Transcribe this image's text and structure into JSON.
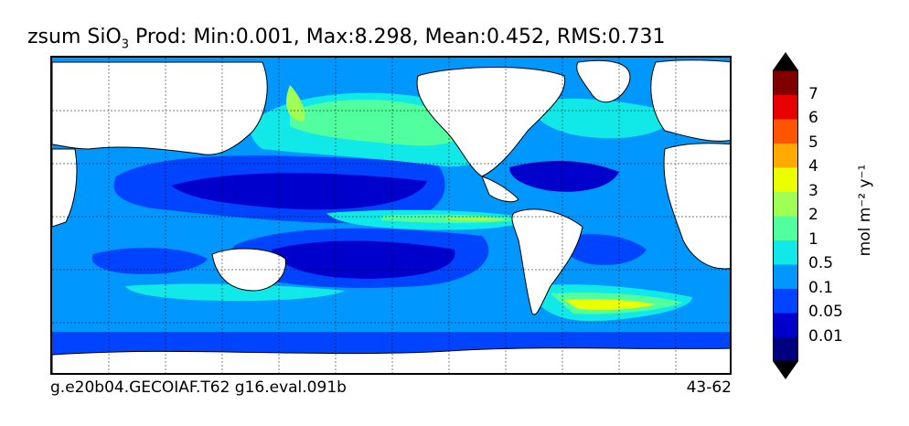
{
  "figure": {
    "title_prefix": "zsum SiO",
    "title_sub": "3",
    "title_suffix": " Prod: Min:0.001, Max:8.298, Mean:0.452, RMS:0.731",
    "footer_left": "g.e20b04.GECOIAF.T62 g16.eval.091b",
    "footer_right": "43-62"
  },
  "colorbar": {
    "ticks": [
      "7",
      "6",
      "5",
      "4",
      "3",
      "2",
      "1",
      "0.5",
      "0.1",
      "0.05",
      "0.01"
    ],
    "unit_label": "mol m⁻² y⁻¹",
    "colors": [
      "#00007f",
      "#0000cd",
      "#0044ff",
      "#0098ff",
      "#11e8e8",
      "#52ff9e",
      "#a0ff55",
      "#eaff00",
      "#ffaa00",
      "#ff5500",
      "#e80000",
      "#7f0000"
    ]
  }
}
